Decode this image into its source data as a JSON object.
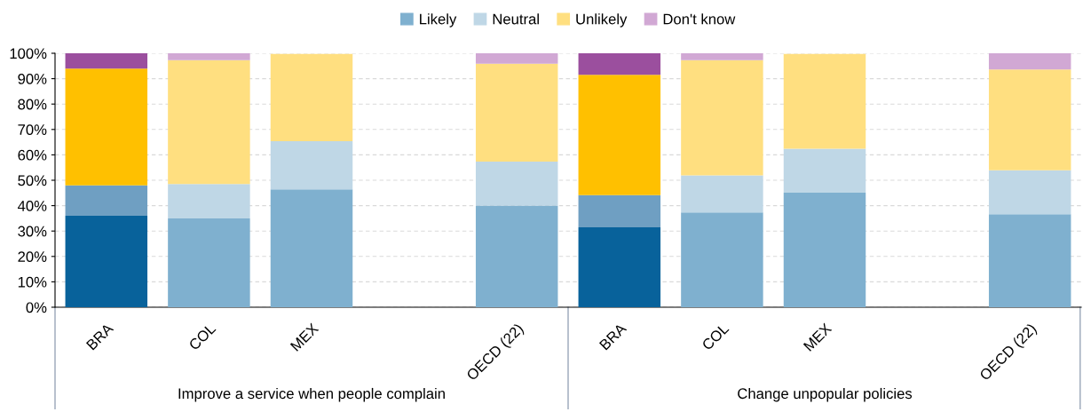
{
  "chart_data": {
    "type": "bar",
    "stacked": true,
    "categories": [
      "BRA",
      "COL",
      "MEX",
      null,
      "OECD (22)",
      "BRA",
      "COL",
      "MEX",
      null,
      "OECD (22)"
    ],
    "series": [
      {
        "name": "Likely",
        "color": "#7fb0cf",
        "colors": [
          "#08629b",
          "#7fb0cf",
          "#7fb0cf",
          null,
          "#7fb0cf",
          "#08629b",
          "#7fb0cf",
          "#7fb0cf",
          null,
          "#7fb0cf"
        ],
        "values": [
          36,
          35,
          46.4,
          null,
          40,
          31.5,
          37.3,
          45.1,
          null,
          36.6
        ]
      },
      {
        "name": "Neutral",
        "color": "#bfd7e6",
        "colors": [
          "#6f9fc2",
          "#bfd7e6",
          "#bfd7e6",
          null,
          "#bfd7e6",
          "#6f9fc2",
          "#bfd7e6",
          "#bfd7e6",
          null,
          "#bfd7e6"
        ],
        "values": [
          12,
          13.5,
          19,
          null,
          17.3,
          12.6,
          14.6,
          17.3,
          null,
          17.3
        ]
      },
      {
        "name": "Unlikely",
        "color": "#ffdf80",
        "colors": [
          "#ffc000",
          "#ffdf80",
          "#ffdf80",
          null,
          "#ffdf80",
          "#ffc000",
          "#ffdf80",
          "#ffdf80",
          null,
          "#ffdf80"
        ],
        "values": [
          46,
          48.8,
          34.3,
          null,
          38.6,
          47.4,
          45.4,
          37.3,
          null,
          39.7
        ]
      },
      {
        "name": "Don't know",
        "color": "#d1a8d4",
        "colors": [
          "#9b4f9e",
          "#d1a8d4",
          "#d1a8d4",
          null,
          "#d1a8d4",
          "#9b4f9e",
          "#d1a8d4",
          "#d1a8d4",
          null,
          "#d1a8d4"
        ],
        "values": [
          6,
          2.7,
          null,
          null,
          4.1,
          8.5,
          2.7,
          null,
          null,
          6.4
        ]
      }
    ],
    "ylim": [
      0,
      100
    ],
    "yticks": [
      {
        "value": 0,
        "label": "0%"
      },
      {
        "value": 10,
        "label": "10%"
      },
      {
        "value": 20,
        "label": "20%"
      },
      {
        "value": 30,
        "label": "30%"
      },
      {
        "value": 40,
        "label": "40%"
      },
      {
        "value": 50,
        "label": "50%"
      },
      {
        "value": 60,
        "label": "60%"
      },
      {
        "value": 70,
        "label": "70%"
      },
      {
        "value": 80,
        "label": "80%"
      },
      {
        "value": 90,
        "label": "90%"
      },
      {
        "value": 100,
        "label": "100%"
      }
    ],
    "grid": "y",
    "legend": "top",
    "annotations": [
      "Improve a service when people complain",
      "Change unpopular policies"
    ]
  }
}
